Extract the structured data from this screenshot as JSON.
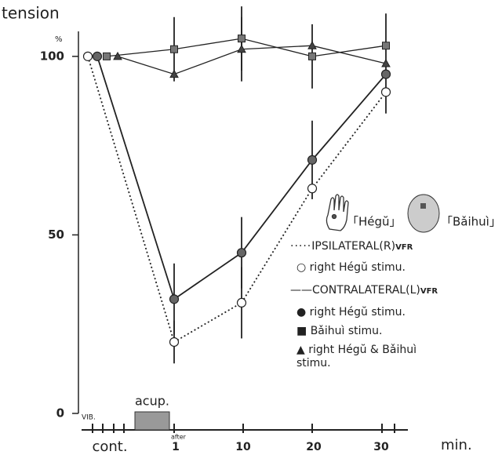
{
  "chart_data": {
    "type": "line",
    "title": "tension",
    "y_unit": "%",
    "x_label": "min.",
    "categories": [
      "cont.",
      "1",
      "10",
      "20",
      "30"
    ],
    "ylim": [
      0,
      107
    ],
    "yticks": [
      0,
      50,
      100
    ],
    "series": [
      {
        "name": "right Hégŭ stimu.",
        "color": "#222222",
        "marker": "open-circle",
        "line_style": "dotted",
        "values": [
          100,
          20,
          31,
          63,
          90
        ],
        "errors": [
          null,
          6,
          10,
          null,
          6
        ]
      },
      {
        "name": "right Hégŭ stimu.",
        "color": "#222222",
        "marker": "filled-circle",
        "line_style": "solid",
        "values": [
          100,
          32,
          45,
          71,
          95
        ],
        "errors": [
          null,
          10,
          10,
          11,
          null
        ]
      },
      {
        "name": "Bǎihuì stimu.",
        "color": "#222222",
        "marker": "square",
        "line_style": "solid",
        "values": [
          100,
          102,
          105,
          100,
          103
        ],
        "errors": [
          null,
          9,
          9,
          9,
          9
        ]
      },
      {
        "name": "right Hégŭ & Bǎihuì stimu.",
        "color": "#222222",
        "marker": "triangle",
        "line_style": "solid",
        "values": [
          100,
          95,
          102,
          103,
          98
        ],
        "errors": [
          null,
          null,
          9,
          null,
          null
        ]
      }
    ],
    "legend_groups": [
      {
        "title": "IPSILATERAL(R)",
        "subscript": "VFR"
      },
      {
        "title": "CONTRALATERAL(L)",
        "subscript": "VFR"
      }
    ],
    "annotations": {
      "after": "after",
      "vib": "VIB.",
      "acup": "acup.",
      "hegu": "「Hégŭ」",
      "baihui": "「Bǎihuì」"
    }
  }
}
